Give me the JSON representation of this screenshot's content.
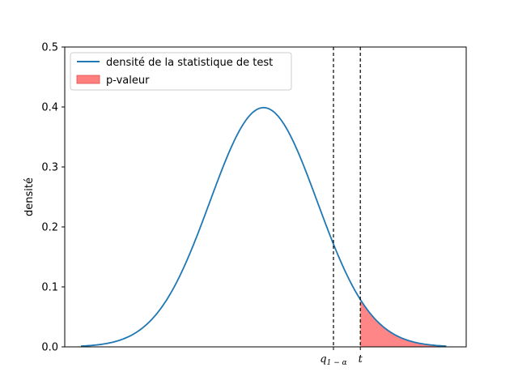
{
  "chart_data": {
    "type": "line",
    "ylabel": "densité",
    "ylim": [
      0,
      0.5
    ],
    "xlim": [
      -3.4,
      3.4
    ],
    "yticks": [
      "0.0",
      "0.1",
      "0.2",
      "0.3",
      "0.4",
      "0.5"
    ],
    "xticks": [
      {
        "value": 1.3,
        "base": "q",
        "sub": "1 − α"
      },
      {
        "value": 1.8,
        "base": "t",
        "sub": ""
      }
    ],
    "series": [
      {
        "name": "densité de la statistique  de test",
        "color": "#1f77b4",
        "distribution": "standard normal density",
        "x_range": [
          -3.4,
          3.4
        ]
      }
    ],
    "shaded_area": {
      "name": "p-valeur",
      "color": "#ff7f7f",
      "from_x": 1.8,
      "to_x": 3.4
    },
    "vlines": [
      1.3,
      1.8
    ],
    "legend_position": "top-left",
    "grid": false
  }
}
